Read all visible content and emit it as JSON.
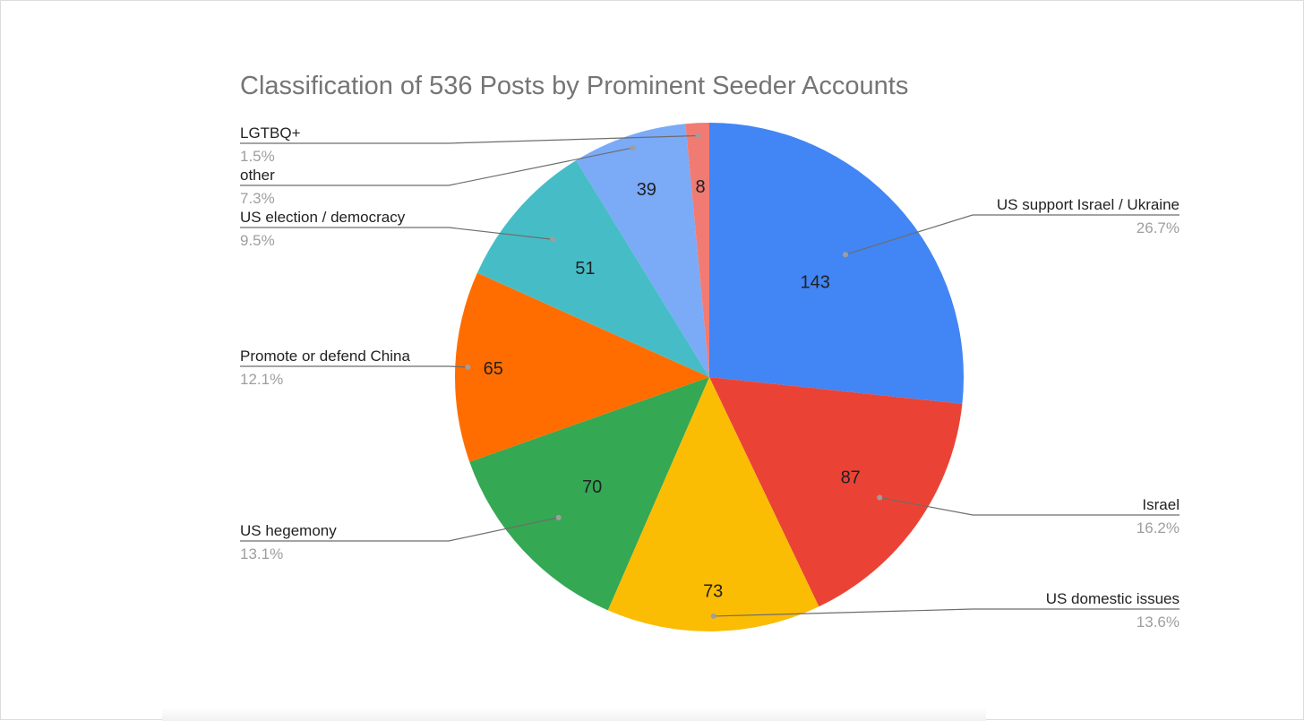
{
  "chart_data": {
    "type": "pie",
    "title": "Classification of 536 Posts by Prominent Seeder Accounts",
    "slices": [
      {
        "label": "US support Israel / Ukraine",
        "value": 143,
        "value_label": "143",
        "percent": "26.7%",
        "color": "#4285f4"
      },
      {
        "label": "Israel",
        "value": 87,
        "value_label": "87",
        "percent": "16.2%",
        "color": "#ea4335"
      },
      {
        "label": "US domestic issues",
        "value": 73,
        "value_label": "73",
        "percent": "13.6%",
        "color": "#fbbc04"
      },
      {
        "label": "US hegemony",
        "value": 70,
        "value_label": "70",
        "percent": "13.1%",
        "color": "#34a853"
      },
      {
        "label": "Promote or defend China",
        "value": 65,
        "value_label": "65",
        "percent": "12.1%",
        "color": "#ff6d01"
      },
      {
        "label": "US election / democracy",
        "value": 51,
        "value_label": "51",
        "percent": "9.5%",
        "color": "#46bdc6"
      },
      {
        "label": "other",
        "value": 39,
        "value_label": "39",
        "percent": "7.3%",
        "color": "#7baaf7"
      },
      {
        "label": "LGTBQ+",
        "value": 8,
        "value_label": "8",
        "percent": "1.5%",
        "color": "#f07b72"
      }
    ],
    "start_angle": "top",
    "direction": "clockwise",
    "legend": "callout labels with leader lines"
  }
}
